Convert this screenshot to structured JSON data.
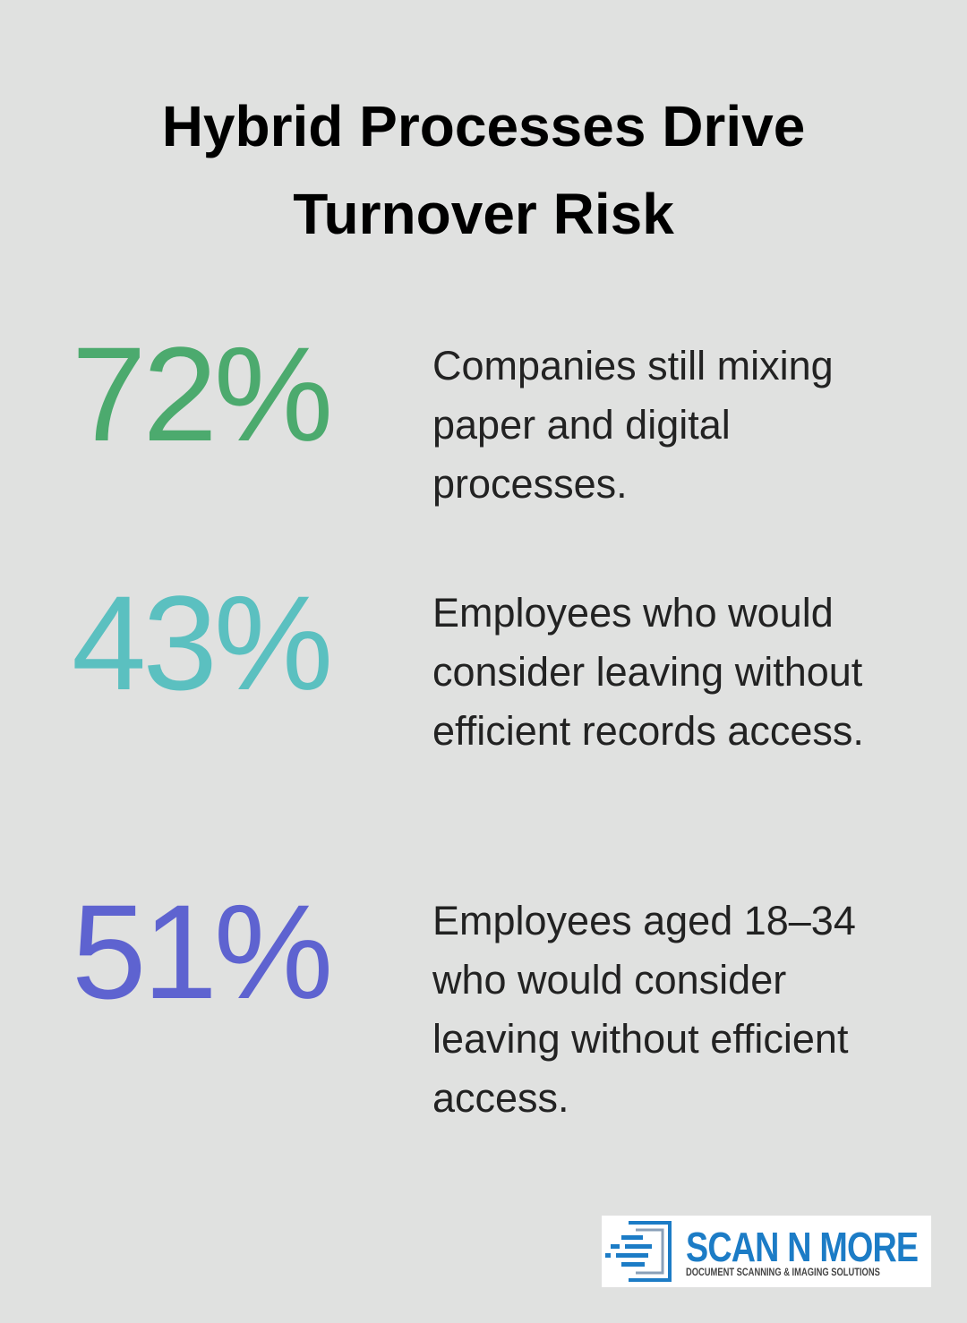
{
  "header": {
    "title_lines": [
      "Hybrid Processes Drive",
      "Turnover Risk"
    ]
  },
  "stats": [
    {
      "figure": "72%",
      "description": "Companies still mixing paper and digital processes."
    },
    {
      "figure": "43%",
      "description": "Employees who would consider leaving without efficient records access."
    },
    {
      "figure": "51%",
      "description": "Employees aged 18–34 who would consider leaving without efficient access."
    }
  ],
  "logo": {
    "name": "SCAN N MORE",
    "tagline": "DOCUMENT SCANNING & IMAGING SOLUTIONS"
  }
}
